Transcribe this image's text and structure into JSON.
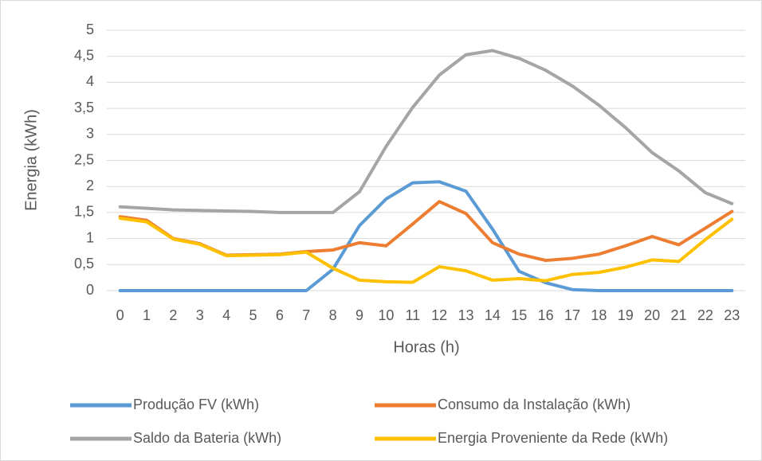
{
  "chart_data": {
    "type": "line",
    "xlabel": "Horas (h)",
    "ylabel": "Energia (kWh)",
    "categories": [
      "0",
      "1",
      "2",
      "3",
      "4",
      "5",
      "6",
      "7",
      "8",
      "9",
      "10",
      "11",
      "12",
      "13",
      "14",
      "15",
      "16",
      "17",
      "18",
      "19",
      "20",
      "21",
      "22",
      "23"
    ],
    "series": [
      {
        "name": "Produção FV (kWh)",
        "color": "#5b9bd5",
        "values": [
          0,
          0,
          0,
          0,
          0,
          0,
          0,
          0,
          0.41,
          1.25,
          1.76,
          2.07,
          2.09,
          1.91,
          1.18,
          0.37,
          0.15,
          0.02,
          0,
          0,
          0,
          0,
          0,
          0
        ]
      },
      {
        "name": "Consumo da Instalação (kWh)",
        "color": "#ed7d31",
        "values": [
          1.42,
          1.35,
          1.0,
          0.9,
          0.68,
          0.69,
          0.7,
          0.75,
          0.78,
          0.92,
          0.86,
          1.28,
          1.71,
          1.48,
          0.92,
          0.7,
          0.58,
          0.62,
          0.7,
          0.86,
          1.04,
          0.88,
          1.2,
          1.52
        ]
      },
      {
        "name": "Saldo da Bateria (kWh)",
        "color": "#a5a5a5",
        "values": [
          1.61,
          1.58,
          1.55,
          1.54,
          1.53,
          1.52,
          1.5,
          1.5,
          1.5,
          1.9,
          2.77,
          3.52,
          4.14,
          4.53,
          4.61,
          4.46,
          4.23,
          3.93,
          3.56,
          3.13,
          2.65,
          2.3,
          1.88,
          1.67
        ]
      },
      {
        "name": "Energia Proveniente da Rede (kWh)",
        "color": "#ffc000",
        "values": [
          1.39,
          1.32,
          0.99,
          0.89,
          0.67,
          0.68,
          0.69,
          0.74,
          0.43,
          0.2,
          0.17,
          0.16,
          0.46,
          0.38,
          0.2,
          0.23,
          0.19,
          0.31,
          0.35,
          0.45,
          0.59,
          0.56,
          0.98,
          1.37
        ]
      }
    ],
    "ylim": [
      0,
      5
    ],
    "yticks": [
      0,
      {
        "value": 0.5,
        "label": "0,5"
      },
      1,
      {
        "value": 1.5,
        "label": "1,5"
      },
      2,
      {
        "value": 2.5,
        "label": "2,5"
      },
      3,
      {
        "value": 3.5,
        "label": "3,5"
      },
      4,
      {
        "value": 4.5,
        "label": "4,5"
      },
      5
    ],
    "grid": true
  }
}
